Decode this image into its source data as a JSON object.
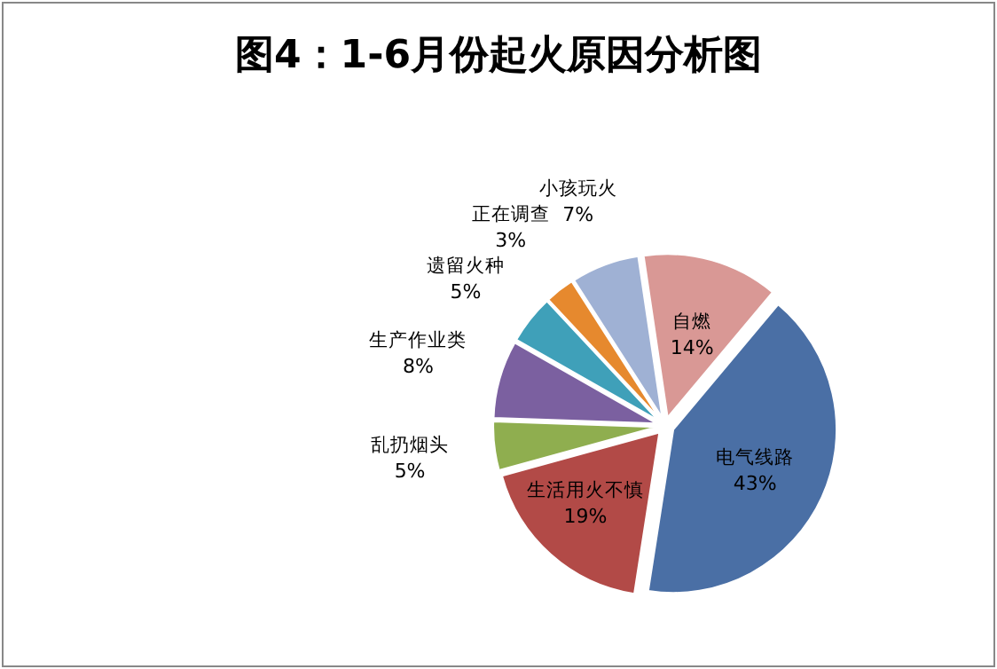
{
  "chart_data": {
    "type": "pie",
    "title": "图4：1-6月份起火原因分析图",
    "categories": [
      "电气线路",
      "生活用火不慎",
      "乱扔烟头",
      "生产作业类",
      "遗留火种",
      "正在调查",
      "小孩玩火",
      "自燃"
    ],
    "values": [
      43,
      19,
      5,
      8,
      5,
      3,
      7,
      14
    ],
    "colors": [
      "#4a6fa5",
      "#b24a47",
      "#8fae4f",
      "#7b60a0",
      "#3fa0b9",
      "#e6892e",
      "#9fb1d4",
      "#d99895"
    ],
    "value_labels": [
      "43%",
      "19%",
      "5%",
      "8%",
      "5%",
      "3%",
      "7%",
      "14%"
    ],
    "legend": false
  }
}
